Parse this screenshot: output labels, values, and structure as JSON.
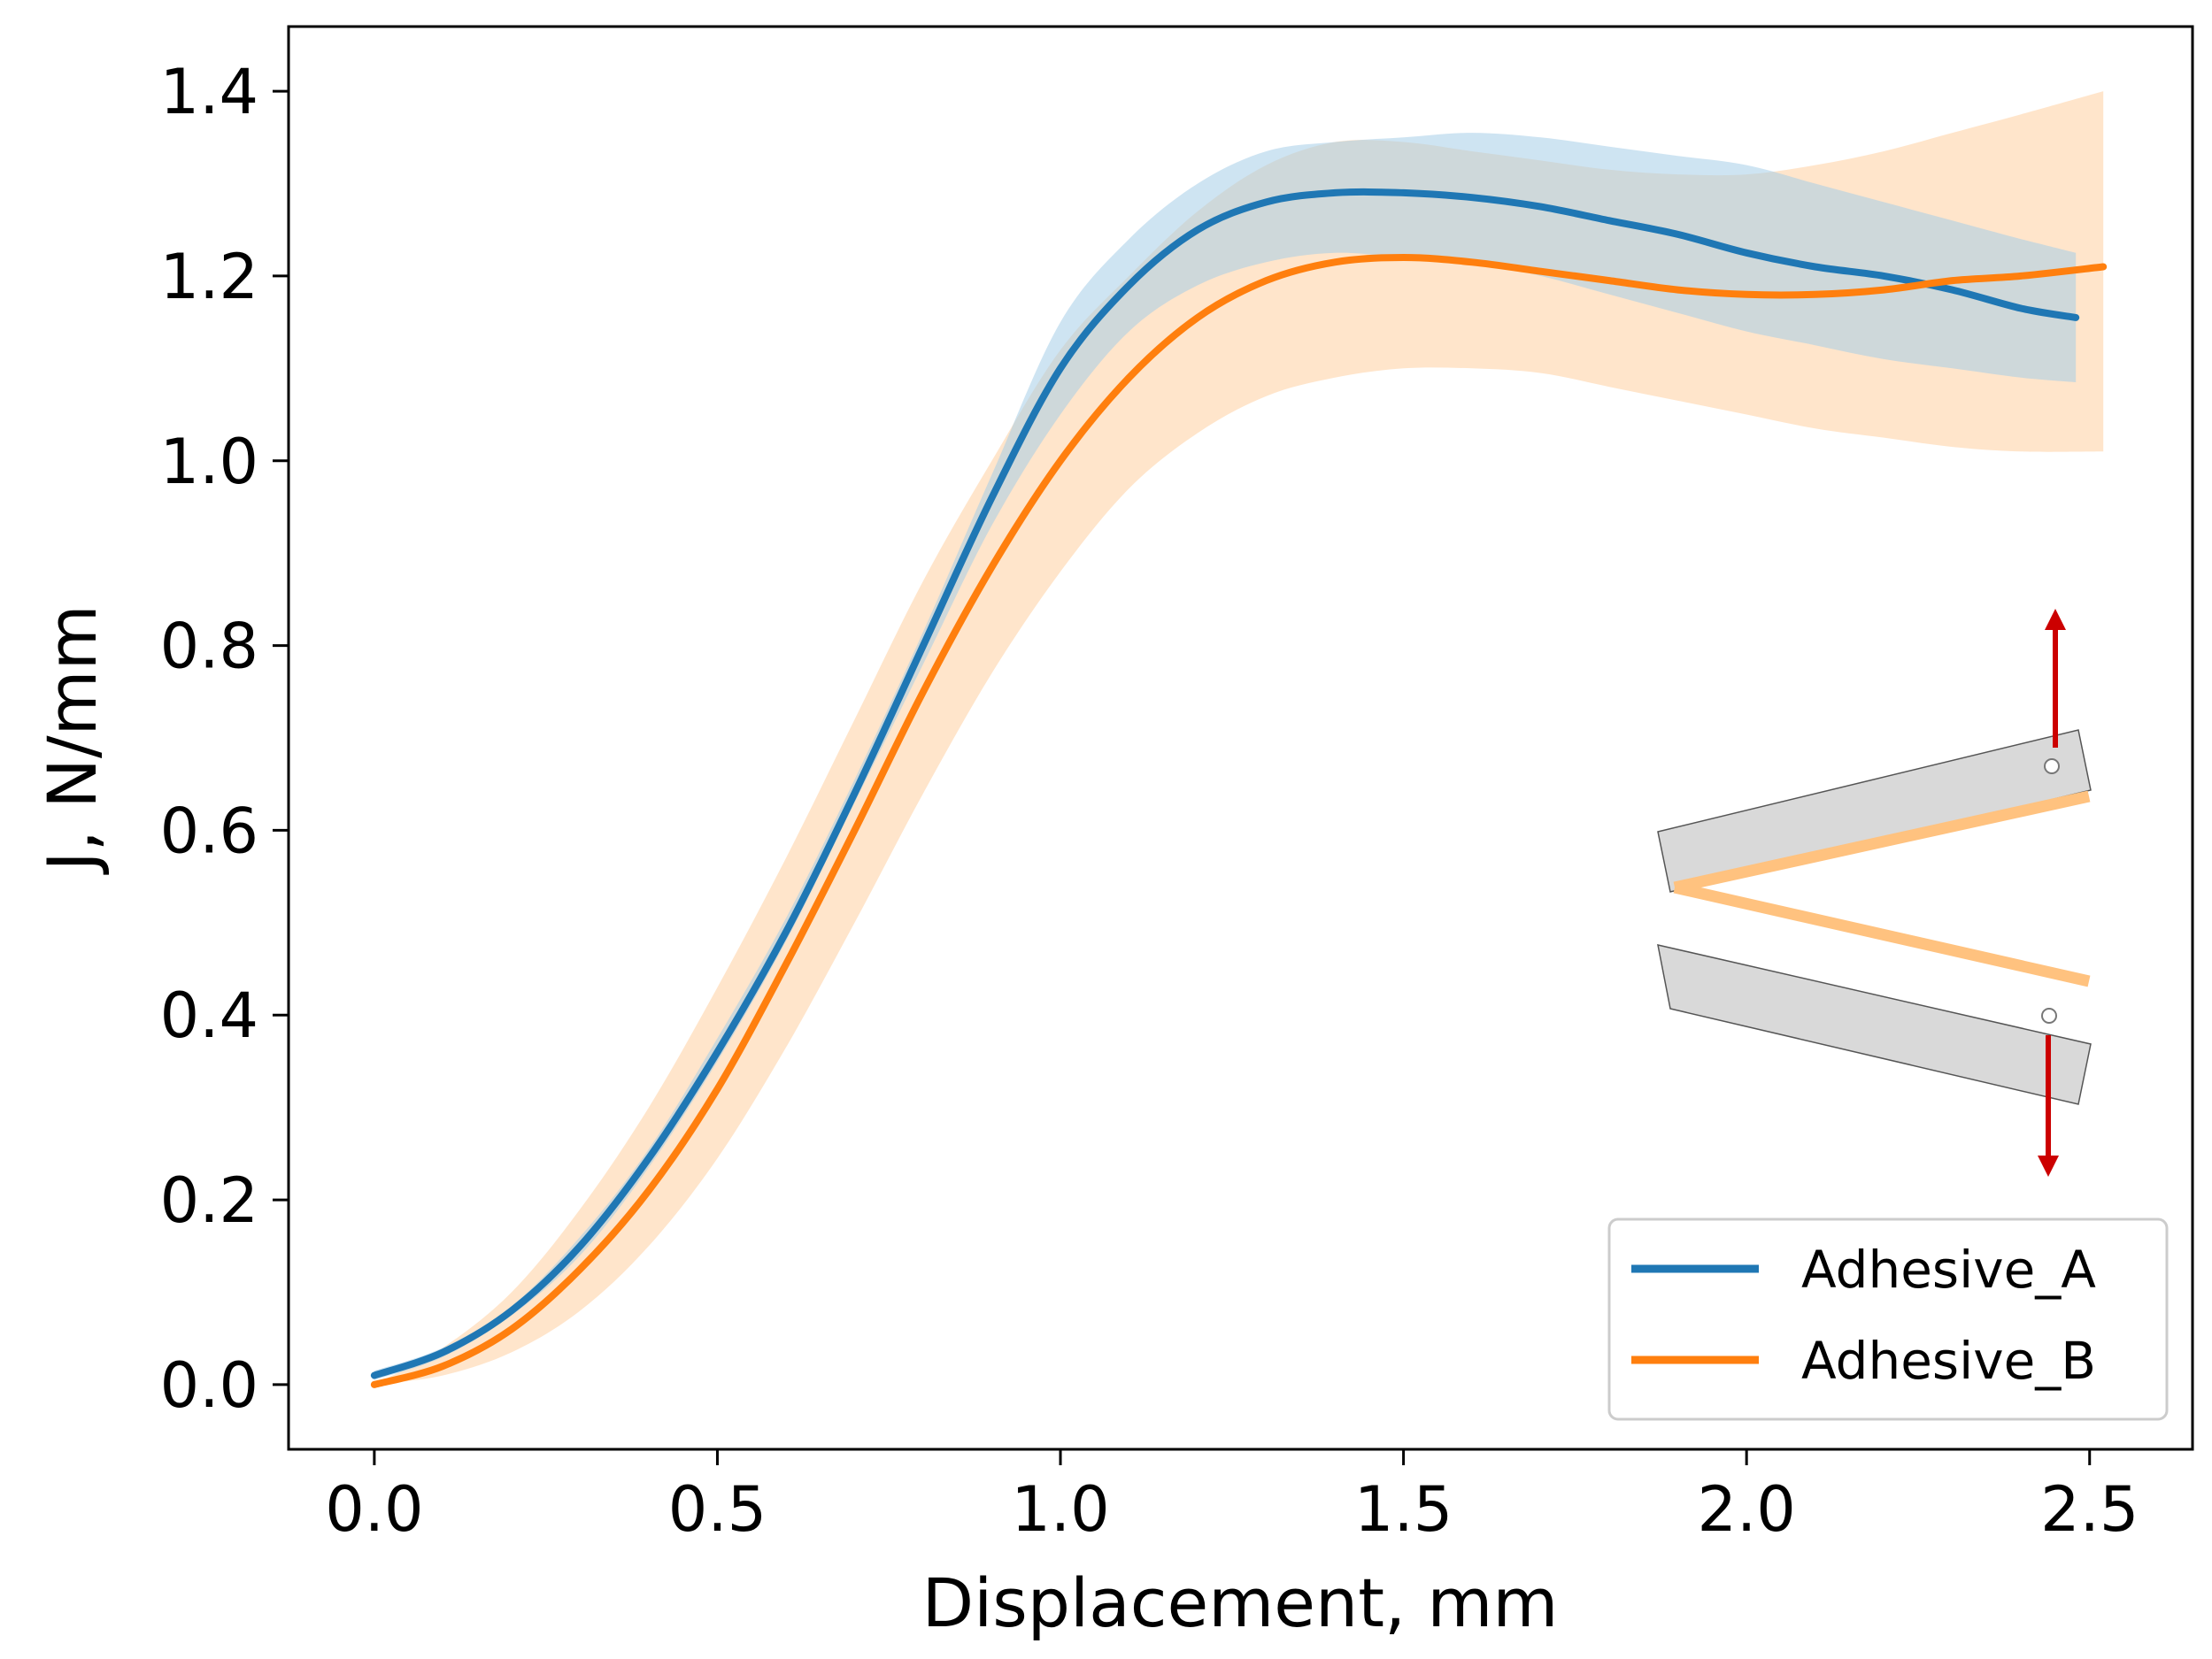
{
  "chart_data": {
    "type": "line",
    "title": "",
    "xlabel": "Displacement, mm",
    "ylabel": "J, N/mm",
    "xlim": [
      -0.125,
      2.65
    ],
    "ylim": [
      -0.07,
      1.47
    ],
    "x_ticks": [
      0.0,
      0.5,
      1.0,
      1.5,
      2.0,
      2.5
    ],
    "x_tick_labels": [
      "0.0",
      "0.5",
      "1.0",
      "1.5",
      "2.0",
      "2.5"
    ],
    "y_ticks": [
      0.0,
      0.2,
      0.4,
      0.6,
      0.8,
      1.0,
      1.2,
      1.4
    ],
    "y_tick_labels": [
      "0.0",
      "0.2",
      "0.4",
      "0.6",
      "0.8",
      "1.0",
      "1.2",
      "1.4"
    ],
    "grid": false,
    "legend_position": "lower-right",
    "series": [
      {
        "name": "Adhesive_A",
        "color": "#1f77b4",
        "band_color": "#a6cee8",
        "x": [
          0.0,
          0.1,
          0.2,
          0.3,
          0.4,
          0.5,
          0.6,
          0.7,
          0.8,
          0.9,
          1.0,
          1.1,
          1.2,
          1.3,
          1.4,
          1.5,
          1.6,
          1.7,
          1.8,
          1.9,
          2.0,
          2.1,
          2.2,
          2.3,
          2.4,
          2.48
        ],
        "values": [
          0.01,
          0.035,
          0.08,
          0.15,
          0.245,
          0.36,
          0.49,
          0.64,
          0.8,
          0.96,
          1.1,
          1.19,
          1.25,
          1.28,
          1.29,
          1.29,
          1.285,
          1.275,
          1.26,
          1.245,
          1.225,
          1.21,
          1.2,
          1.185,
          1.165,
          1.155
        ],
        "lower": [
          0.005,
          0.03,
          0.075,
          0.14,
          0.235,
          0.35,
          0.48,
          0.63,
          0.78,
          0.93,
          1.05,
          1.14,
          1.19,
          1.215,
          1.225,
          1.22,
          1.215,
          1.2,
          1.18,
          1.16,
          1.14,
          1.125,
          1.11,
          1.1,
          1.09,
          1.085
        ],
        "upper": [
          0.015,
          0.04,
          0.085,
          0.16,
          0.255,
          0.375,
          0.505,
          0.655,
          0.815,
          0.985,
          1.15,
          1.24,
          1.3,
          1.335,
          1.345,
          1.35,
          1.355,
          1.35,
          1.34,
          1.33,
          1.32,
          1.3,
          1.28,
          1.26,
          1.24,
          1.225
        ]
      },
      {
        "name": "Adhesive_B",
        "color": "#ff7f0e",
        "band_color": "#ffdcba",
        "x": [
          0.0,
          0.1,
          0.2,
          0.3,
          0.4,
          0.5,
          0.6,
          0.7,
          0.8,
          0.9,
          1.0,
          1.1,
          1.2,
          1.3,
          1.4,
          1.5,
          1.6,
          1.7,
          1.8,
          1.9,
          2.0,
          2.1,
          2.2,
          2.3,
          2.4,
          2.52
        ],
        "values": [
          0.0,
          0.02,
          0.06,
          0.125,
          0.21,
          0.32,
          0.455,
          0.6,
          0.75,
          0.885,
          1.0,
          1.09,
          1.155,
          1.195,
          1.215,
          1.22,
          1.215,
          1.205,
          1.195,
          1.185,
          1.18,
          1.18,
          1.185,
          1.195,
          1.2,
          1.21
        ],
        "lower": [
          0.0,
          0.01,
          0.035,
          0.08,
          0.15,
          0.245,
          0.365,
          0.5,
          0.64,
          0.77,
          0.88,
          0.97,
          1.03,
          1.07,
          1.09,
          1.1,
          1.1,
          1.095,
          1.08,
          1.065,
          1.05,
          1.035,
          1.025,
          1.015,
          1.01,
          1.01
        ],
        "upper": [
          0.0,
          0.04,
          0.1,
          0.19,
          0.3,
          0.43,
          0.57,
          0.72,
          0.87,
          1.0,
          1.12,
          1.2,
          1.27,
          1.32,
          1.345,
          1.345,
          1.335,
          1.325,
          1.315,
          1.31,
          1.31,
          1.32,
          1.335,
          1.355,
          1.375,
          1.4
        ]
      }
    ],
    "inset": {
      "description": "double cantilever beam specimen schematic",
      "beam_color": "#d9d9d9",
      "adhesive_color": "#ffc27f",
      "arrow_color": "#cc0000"
    }
  }
}
